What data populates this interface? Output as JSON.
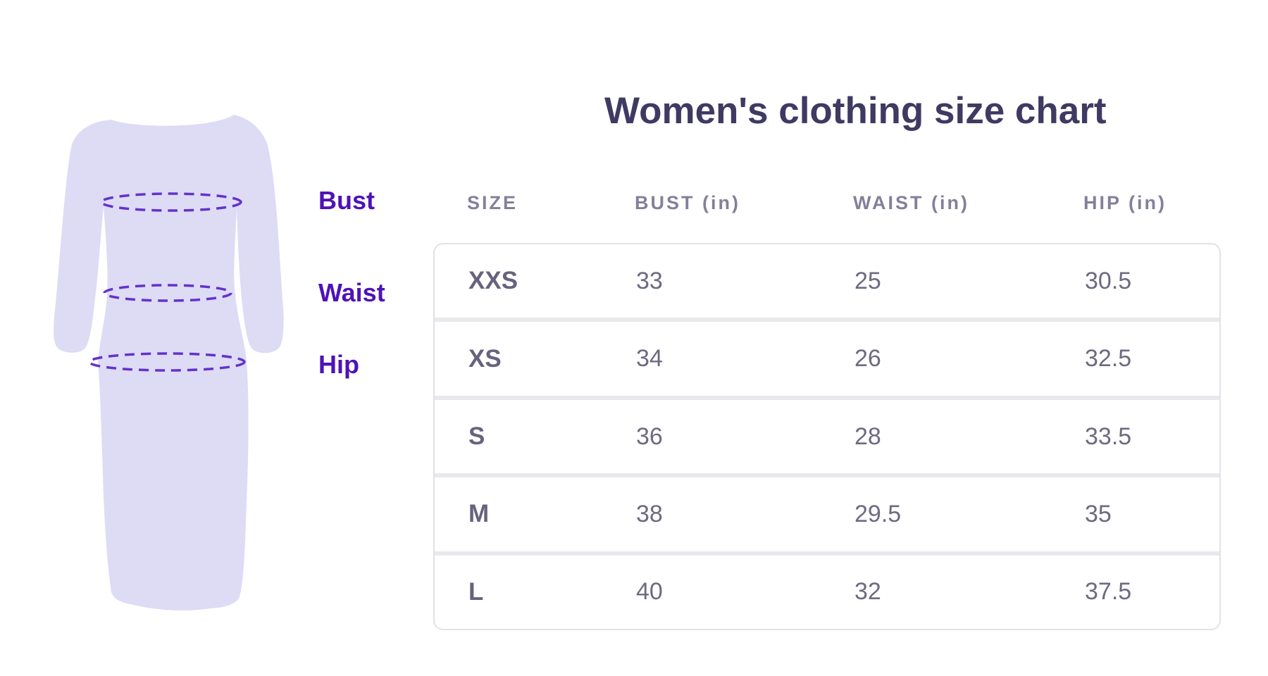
{
  "title": "Women's clothing size chart",
  "figure": {
    "labels": [
      "Bust",
      "Waist",
      "Hip"
    ],
    "silhouette_color": "#dedbf5",
    "measure_line_color": "#6233cb",
    "label_color": "#4e13b7"
  },
  "chart_data": {
    "type": "table",
    "title": "Women's clothing size chart",
    "columns": [
      "SIZE",
      "BUST (in)",
      "WAIST (in)",
      "HIP (in)"
    ],
    "rows": [
      [
        "XXS",
        "33",
        "25",
        "30.5"
      ],
      [
        "XS",
        "34",
        "26",
        "32.5"
      ],
      [
        "S",
        "36",
        "28",
        "33.5"
      ],
      [
        "M",
        "38",
        "29.5",
        "35"
      ],
      [
        "L",
        "40",
        "32",
        "37.5"
      ]
    ],
    "figure_annotations": [
      "Bust",
      "Waist",
      "Hip"
    ],
    "legend_position": "none",
    "grid": "off"
  },
  "colors": {
    "title_text": "#3f3a62",
    "header_text": "#83809a",
    "cell_text": "#6d6a82",
    "table_border": "#e2e2e7",
    "row_separator": "#e9e9ed",
    "accent_purple": "#4e13b7"
  }
}
